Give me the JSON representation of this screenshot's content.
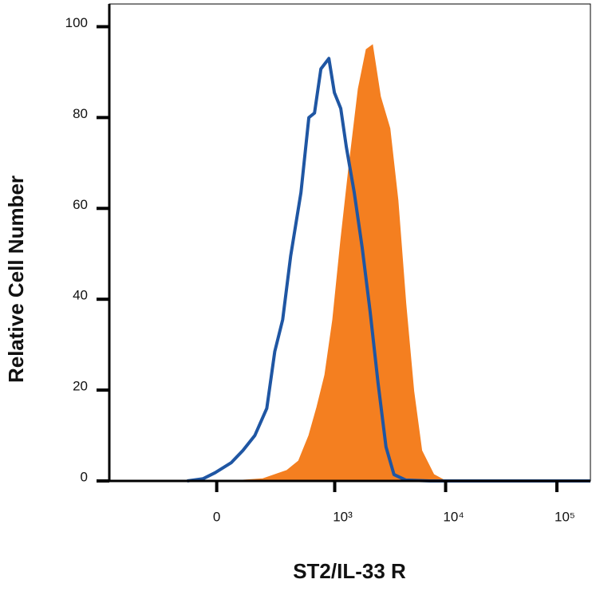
{
  "chart_data": {
    "type": "histogram-overlay",
    "xlabel": "ST2/IL-33 R",
    "ylabel": "Relative Cell Number",
    "xscale": "biexponential",
    "xlim": [
      -800,
      200000
    ],
    "xticks": [
      0,
      {
        "value": 1000,
        "label": "10³"
      },
      {
        "value": 10000,
        "label": "10⁴"
      },
      {
        "value": 100000,
        "label": "10⁵"
      }
    ],
    "ylim": [
      0,
      105
    ],
    "yticks": [
      0,
      20,
      40,
      60,
      80,
      100
    ],
    "series": [
      {
        "color": "#f47f20",
        "fill": true,
        "x": [
          53,
          194,
          353,
          461,
          577,
          686,
          812,
          959,
          1135,
          1342,
          1635,
          1929,
          2201,
          2594,
          3157,
          3727,
          4392,
          5174,
          6104,
          7823,
          10000
        ],
        "values": [
          0,
          0.5,
          2.3,
          4.4,
          10,
          16.3,
          23.3,
          35.5,
          53,
          68.8,
          86.3,
          95,
          96,
          84.6,
          77.6,
          61.8,
          39,
          19.8,
          6.7,
          1.4,
          0
        ]
      },
      {
        "color": "#1f56a3",
        "fill": false,
        "x": [
          -114,
          -50,
          -6,
          53,
          100,
          153,
          216,
          265,
          321,
          386,
          486,
          577,
          652,
          747,
          884,
          993,
          1135,
          1275,
          1505,
          1775,
          2094,
          2470,
          2910,
          3433,
          4392,
          7200,
          200000
        ],
        "values": [
          0,
          0.5,
          1.8,
          4,
          6.7,
          10,
          16,
          28.5,
          35.5,
          49.5,
          63.5,
          80,
          81,
          90.7,
          93,
          85.5,
          82,
          73.5,
          63.5,
          51.3,
          37.3,
          21.5,
          7.5,
          1.4,
          0.2,
          0,
          0
        ]
      }
    ]
  }
}
